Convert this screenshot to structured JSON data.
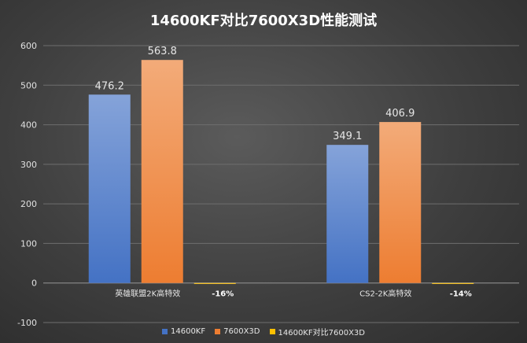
{
  "chart_data": {
    "type": "bar",
    "title": "14600KF对比7600X3D性能测试",
    "xlabel": "",
    "ylabel": "",
    "ylim": [
      -100,
      600
    ],
    "yticks": [
      -100,
      0,
      100,
      200,
      300,
      400,
      500,
      600
    ],
    "ytick_labels": [
      "-100",
      "0",
      "100",
      "200",
      "300",
      "400",
      "500",
      "600"
    ],
    "grid": true,
    "legend_position": "bottom",
    "categories": [
      "英雄联盟2K高特效",
      "CS2-2K高特效"
    ],
    "series": [
      {
        "name": "14600KF",
        "values": [
          476.2,
          349.1
        ],
        "labels": [
          "476.2",
          "349.1"
        ],
        "color": "#4472C4"
      },
      {
        "name": "7600X3D",
        "values": [
          563.8,
          406.9
        ],
        "labels": [
          "563.8",
          "406.9"
        ],
        "color": "#ED7D31"
      },
      {
        "name": "14600KF对比7600X3D",
        "values": [
          -0.16,
          -0.14
        ],
        "labels": [
          "-16%",
          "-14%"
        ],
        "color": "#FFC000"
      }
    ]
  }
}
